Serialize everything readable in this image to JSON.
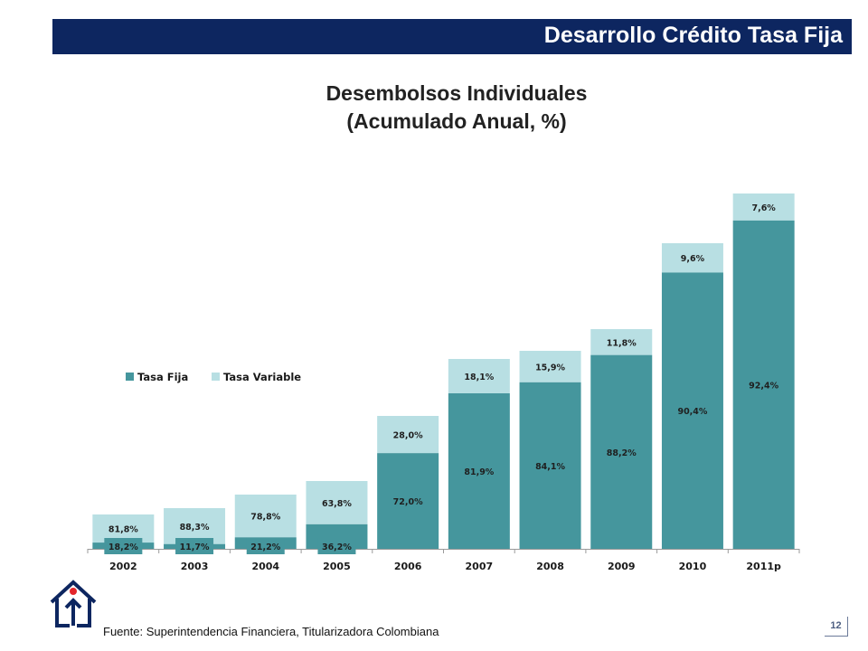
{
  "header": {
    "title": "Desarrollo Crédito Tasa Fija"
  },
  "colors": {
    "header_bg": "#0d2660",
    "tasa_fija": "#45969d",
    "tasa_variable": "#b8dfe3"
  },
  "chart_data": {
    "type": "bar",
    "stacked": true,
    "title": "Desembolsos Individuales",
    "subtitle": "(Acumulado Anual, %)",
    "categories": [
      "2002",
      "2003",
      "2004",
      "2005",
      "2006",
      "2007",
      "2008",
      "2009",
      "2010",
      "2011p"
    ],
    "series": [
      {
        "name": "Tasa Fija",
        "labels": [
          "18,2%",
          "11,7%",
          "21,2%",
          "36,2%",
          "72,0%",
          "81,9%",
          "84,1%",
          "88,2%",
          "90,4%",
          "92,4%"
        ]
      },
      {
        "name": "Tasa Variable",
        "labels": [
          "81,8%",
          "88,3%",
          "78,8%",
          "63,8%",
          "28,0%",
          "18,1%",
          "15,9%",
          "11,8%",
          "9,6%",
          "7,6%"
        ]
      }
    ],
    "legend_position": "left",
    "gridlines": false
  },
  "footer": {
    "source": "Fuente: Superintendencia Financiera, Titularizadora Colombiana",
    "page_number": "12"
  },
  "logo": {
    "icon": "house-arrow-logo-icon"
  }
}
